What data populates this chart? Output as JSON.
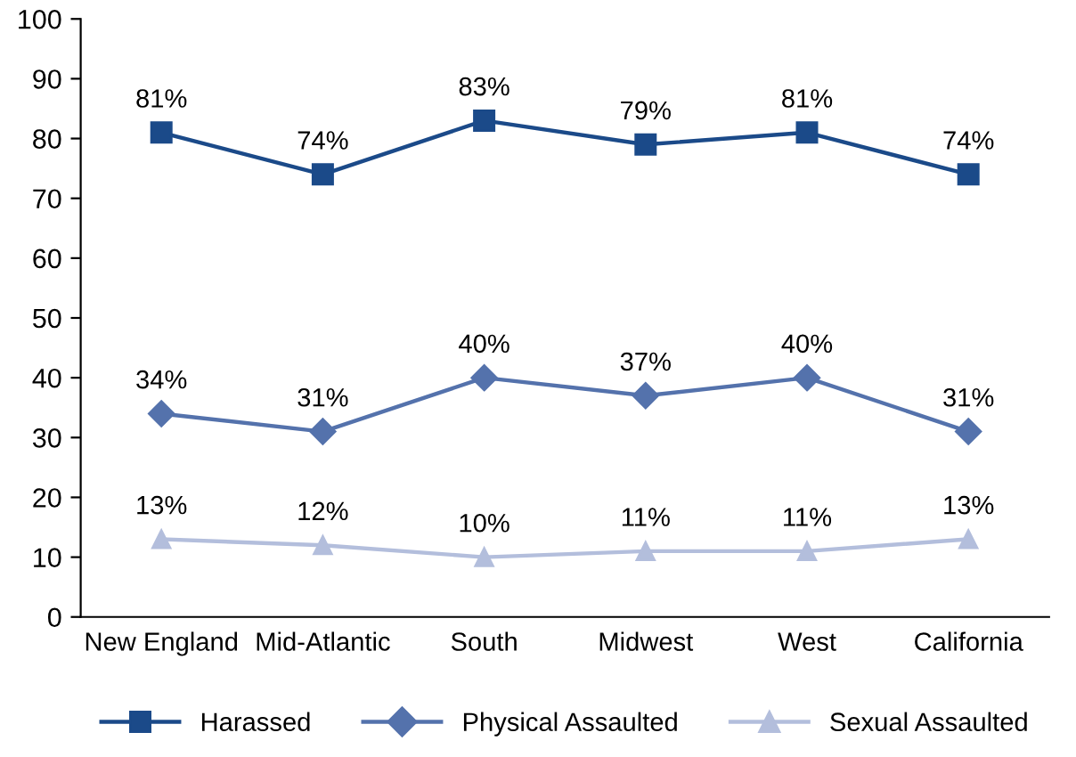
{
  "chart_data": {
    "type": "line",
    "categories": [
      "New England",
      "Mid-Atlantic",
      "South",
      "Midwest",
      "West",
      "California"
    ],
    "series": [
      {
        "name": "Harassed",
        "color": "#1b4a89",
        "marker": "square",
        "values": [
          81,
          74,
          83,
          79,
          81,
          74
        ],
        "value_labels": [
          "81%",
          "74%",
          "83%",
          "79%",
          "81%",
          "74%"
        ]
      },
      {
        "name": "Physical Assaulted",
        "color": "#5472ac",
        "marker": "diamond",
        "values": [
          34,
          31,
          40,
          37,
          40,
          31
        ],
        "value_labels": [
          "34%",
          "31%",
          "40%",
          "37%",
          "40%",
          "31%"
        ]
      },
      {
        "name": "Sexual Assaulted",
        "color": "#b3bedc",
        "marker": "triangle",
        "values": [
          13,
          12,
          10,
          11,
          11,
          13
        ],
        "value_labels": [
          "13%",
          "12%",
          "10%",
          "11%",
          "11%",
          "13%"
        ]
      }
    ],
    "ylim": [
      0,
      100
    ],
    "yticks": [
      0,
      10,
      20,
      30,
      40,
      50,
      60,
      70,
      80,
      90,
      100
    ],
    "grid": false,
    "legend": "bottom",
    "line_style": "solid"
  }
}
